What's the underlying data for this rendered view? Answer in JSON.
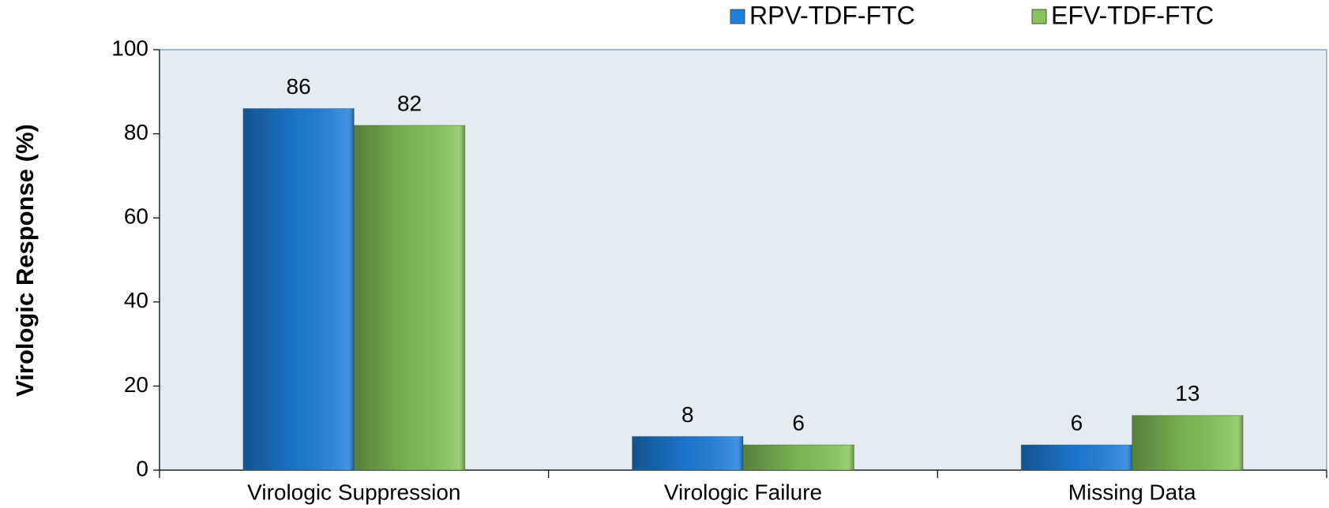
{
  "chart_data": {
    "type": "bar",
    "y_label": "Virologic Response (%)",
    "categories": [
      "Virologic Suppression",
      "Virologic Failure",
      "Missing Data"
    ],
    "series": [
      {
        "name": "RPV-TDF-FTC",
        "color": "#1e80dc",
        "values": [
          86,
          8,
          6
        ]
      },
      {
        "name": "EFV-TDF-FTC",
        "color": "#86c45a",
        "values": [
          82,
          6,
          13
        ]
      }
    ],
    "ylim": [
      0,
      100
    ],
    "yticks": [
      0,
      20,
      40,
      60,
      80,
      100
    ],
    "legend": "top-right",
    "value_labels_shown": true
  }
}
